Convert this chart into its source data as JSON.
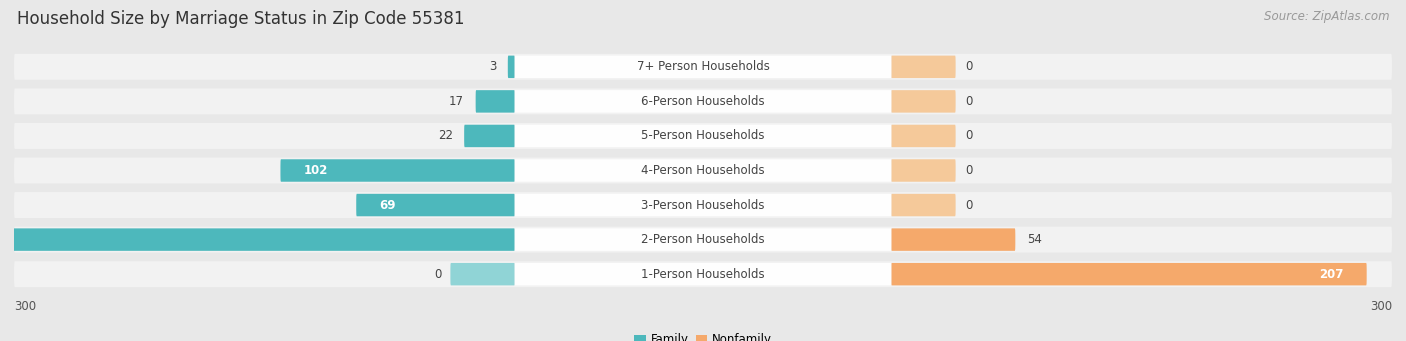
{
  "title": "Household Size by Marriage Status in Zip Code 55381",
  "source": "Source: ZipAtlas.com",
  "categories": [
    "7+ Person Households",
    "6-Person Households",
    "5-Person Households",
    "4-Person Households",
    "3-Person Households",
    "2-Person Households",
    "1-Person Households"
  ],
  "family_values": [
    3,
    17,
    22,
    102,
    69,
    277,
    0
  ],
  "nonfamily_values": [
    0,
    0,
    0,
    0,
    0,
    54,
    207
  ],
  "family_color": "#4db8bc",
  "nonfamily_color": "#f5a96b",
  "nonfamily_stub_color": "#f5c99a",
  "background_color": "#e8e8e8",
  "row_bg_color": "#f2f2f2",
  "bar_max": 300,
  "title_fontsize": 12,
  "source_fontsize": 8.5,
  "label_fontsize": 8.5,
  "value_fontsize": 8.5,
  "tick_fontsize": 8.5,
  "axis_left_label": "300",
  "axis_right_label": "300"
}
